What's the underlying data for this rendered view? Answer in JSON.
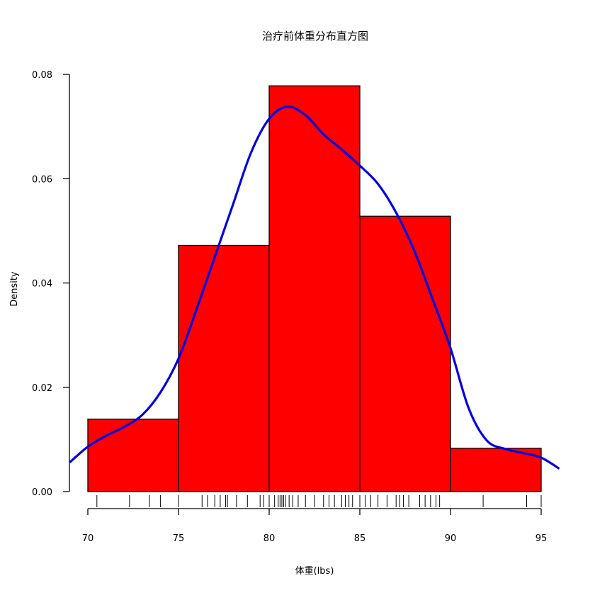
{
  "chart_data": {
    "type": "histogram",
    "title": "治疗前体重分布直方图",
    "xlabel": "体重(lbs)",
    "ylabel": "Density",
    "xlim": [
      69,
      96
    ],
    "ylim": [
      0,
      0.08
    ],
    "x_ticks": [
      70,
      75,
      80,
      85,
      90,
      95
    ],
    "y_ticks": [
      0.0,
      0.02,
      0.04,
      0.06,
      0.08
    ],
    "y_tick_labels": [
      "0.00",
      "0.02",
      "0.04",
      "0.06",
      "0.08"
    ],
    "bins": [
      {
        "start": 70,
        "end": 75,
        "density": 0.0139
      },
      {
        "start": 75,
        "end": 80,
        "density": 0.0472
      },
      {
        "start": 80,
        "end": 85,
        "density": 0.0778
      },
      {
        "start": 85,
        "end": 90,
        "density": 0.0528
      },
      {
        "start": 90,
        "end": 95,
        "density": 0.0083
      }
    ],
    "bar_color": "#ff0000",
    "bar_border_color": "#000000",
    "density_curve": {
      "color": "#0000e0",
      "points": [
        [
          69.0,
          0.0056
        ],
        [
          70.0,
          0.0086
        ],
        [
          71.0,
          0.0107
        ],
        [
          72.0,
          0.0124
        ],
        [
          73.0,
          0.0147
        ],
        [
          74.0,
          0.019
        ],
        [
          75.0,
          0.0255
        ],
        [
          76.0,
          0.035
        ],
        [
          77.0,
          0.045
        ],
        [
          78.0,
          0.055
        ],
        [
          79.0,
          0.065
        ],
        [
          80.0,
          0.0715
        ],
        [
          81.0,
          0.0738
        ],
        [
          82.0,
          0.0722
        ],
        [
          83.0,
          0.0685
        ],
        [
          84.0,
          0.0656
        ],
        [
          85.0,
          0.0625
        ],
        [
          86.0,
          0.059
        ],
        [
          87.0,
          0.0535
        ],
        [
          88.0,
          0.0462
        ],
        [
          89.0,
          0.037
        ],
        [
          90.0,
          0.0275
        ],
        [
          91.0,
          0.016
        ],
        [
          92.0,
          0.0098
        ],
        [
          93.0,
          0.0082
        ],
        [
          94.0,
          0.0074
        ],
        [
          95.0,
          0.0065
        ],
        [
          96.0,
          0.0044
        ]
      ]
    },
    "rug": [
      70.5,
      72.3,
      73.4,
      74.0,
      75.0,
      76.3,
      76.6,
      77.0,
      77.3,
      77.6,
      77.7,
      78.2,
      78.8,
      79.5,
      79.7,
      80.0,
      80.3,
      80.5,
      80.6,
      80.7,
      80.8,
      80.9,
      81.1,
      81.3,
      81.6,
      82.0,
      82.5,
      83.0,
      83.3,
      83.6,
      84.0,
      84.2,
      84.4,
      84.6,
      85.0,
      85.3,
      85.6,
      86.0,
      86.5,
      87.0,
      87.2,
      87.4,
      87.7,
      88.3,
      88.6,
      88.9,
      89.2,
      89.4,
      91.8,
      94.2,
      95.0
    ]
  }
}
